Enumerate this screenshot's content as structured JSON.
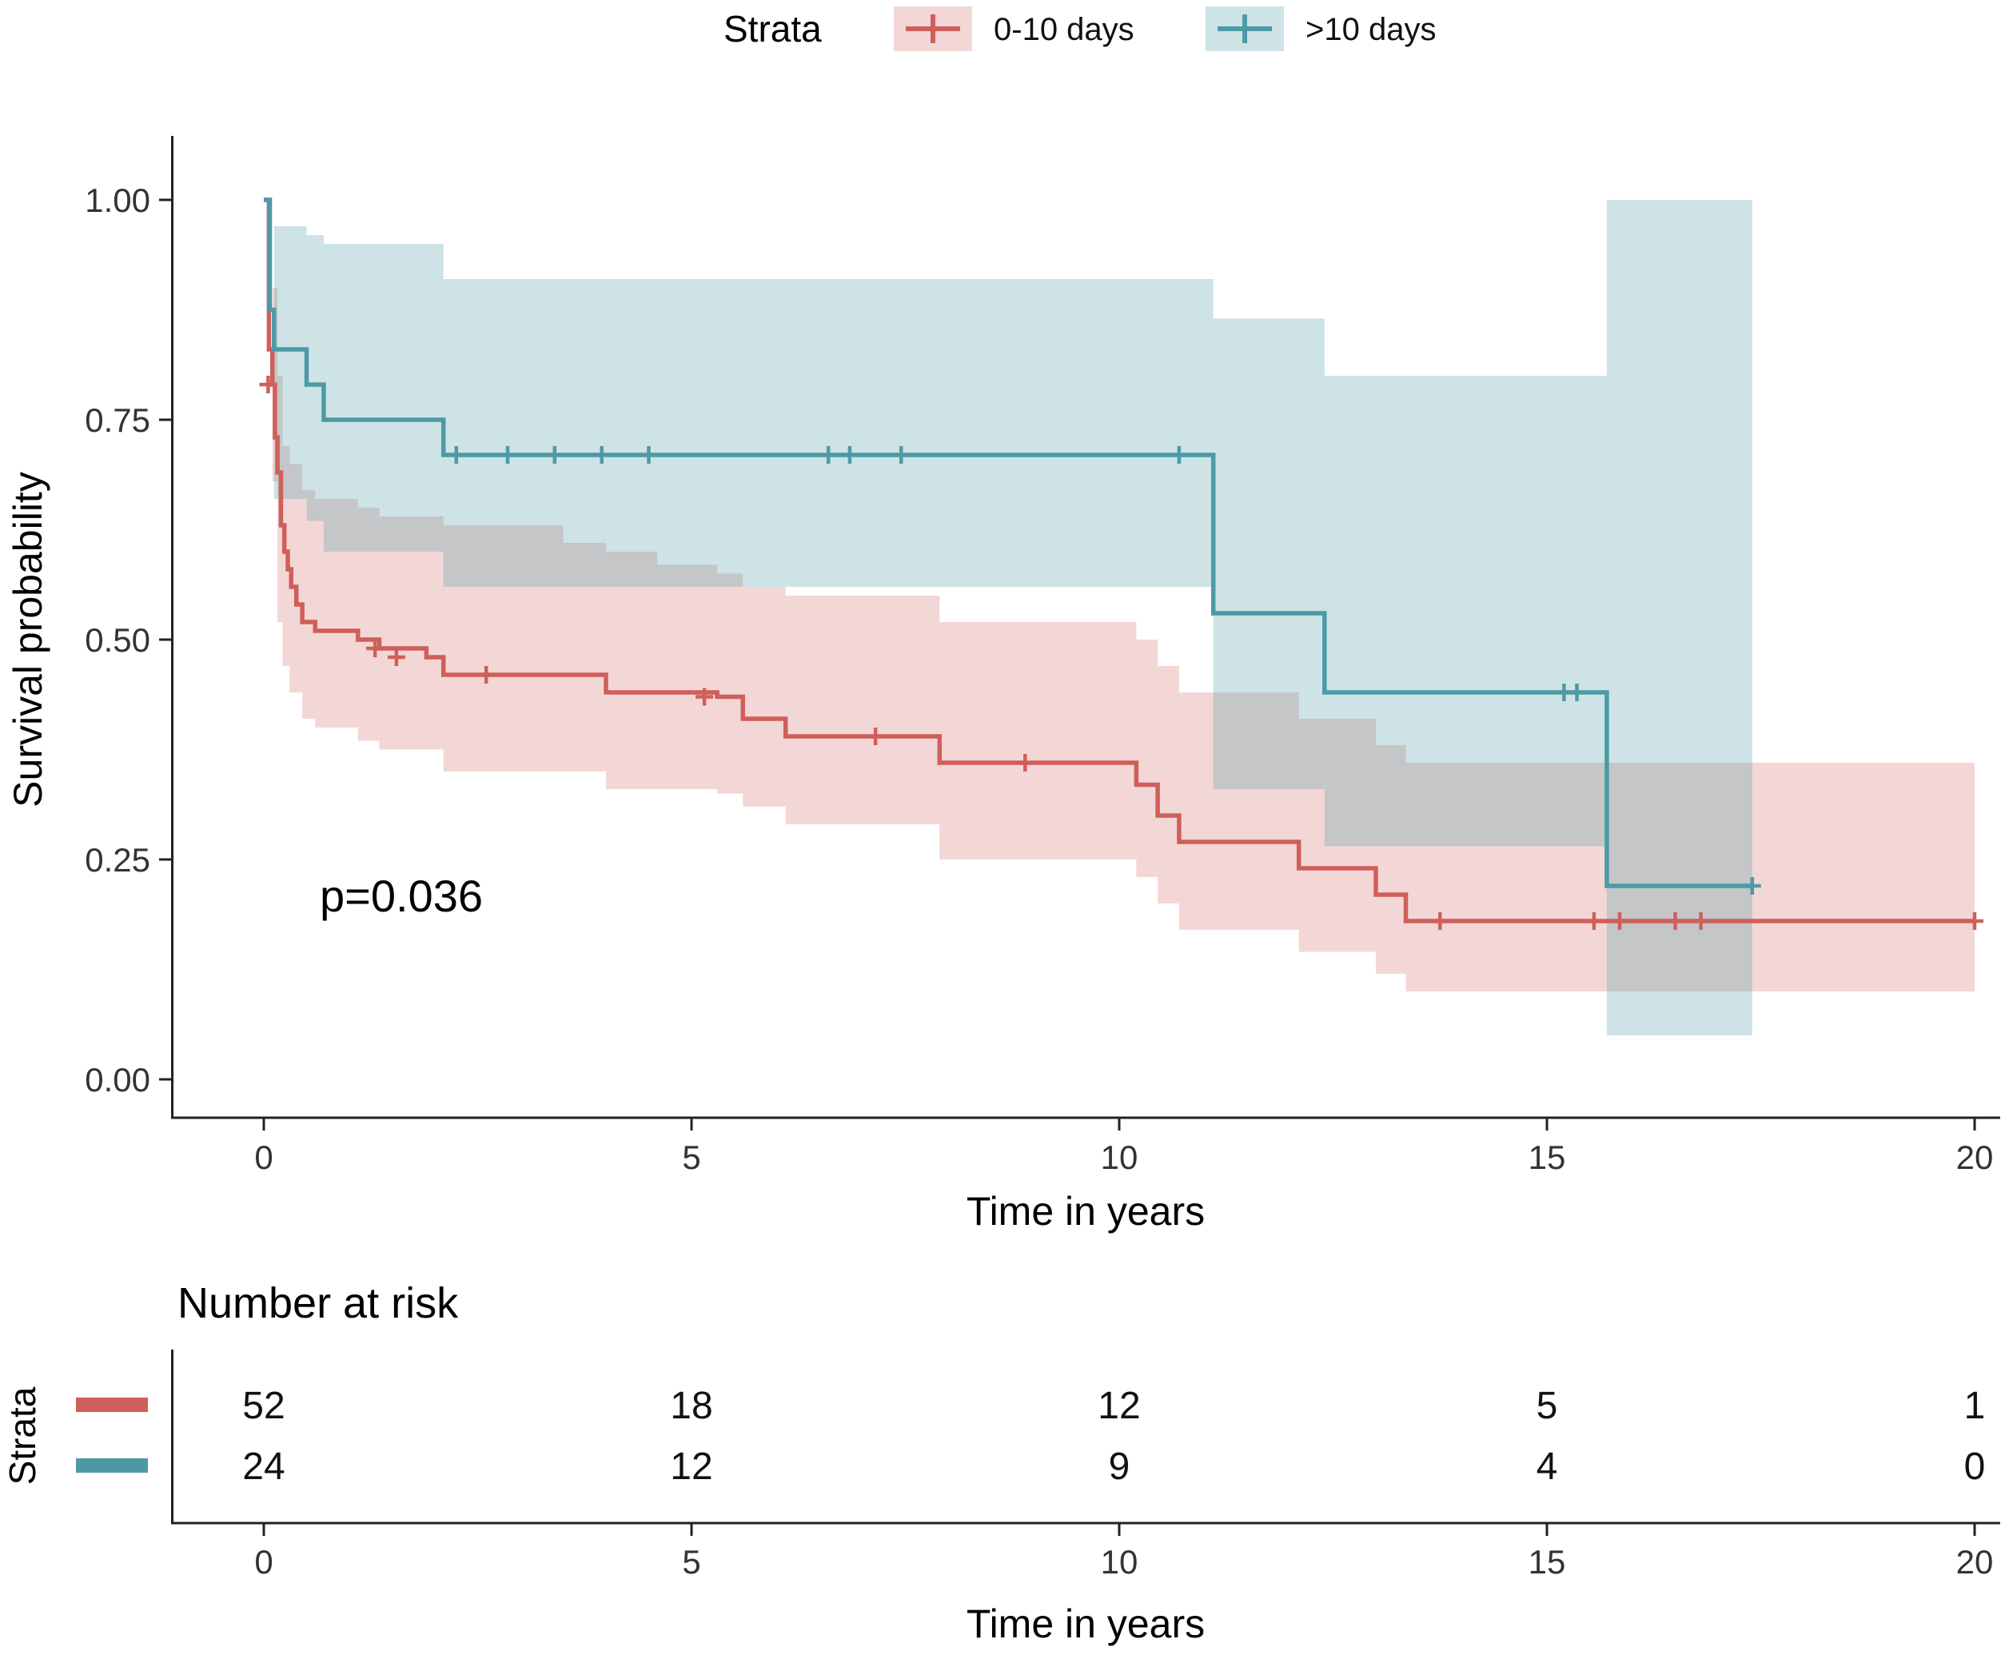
{
  "chart_data": {
    "type": "line",
    "subtype": "kaplan-meier-survival",
    "title": "",
    "xlabel": "Time in years",
    "ylabel": "Survival probability",
    "xlim": [
      0,
      20
    ],
    "ylim": [
      0,
      1
    ],
    "xticks": [
      0,
      5,
      10,
      15,
      20
    ],
    "yticks": [
      0,
      0.25,
      0.5,
      0.75,
      1
    ],
    "ytick_labels": [
      "0.00",
      "0.25",
      "0.50",
      "0.75",
      "1.00"
    ],
    "grid": false,
    "annotation": {
      "text": "p=0.036",
      "x": 0.7,
      "y": 0.2
    },
    "legend": {
      "title": "Strata",
      "position": "top"
    },
    "series": [
      {
        "name": "0-10 days",
        "color": "#cf5f5a",
        "band_color": "rgba(207,95,90,0.25)",
        "steps": [
          [
            0,
            1.0
          ],
          [
            0.06,
            0.83
          ],
          [
            0.1,
            0.79
          ],
          [
            0.13,
            0.73
          ],
          [
            0.16,
            0.69
          ],
          [
            0.2,
            0.63
          ],
          [
            0.24,
            0.6
          ],
          [
            0.28,
            0.58
          ],
          [
            0.32,
            0.56
          ],
          [
            0.38,
            0.54
          ],
          [
            0.45,
            0.52
          ],
          [
            0.6,
            0.51
          ],
          [
            1.1,
            0.5
          ],
          [
            1.35,
            0.49
          ],
          [
            1.9,
            0.48
          ],
          [
            2.1,
            0.46
          ],
          [
            4.0,
            0.44
          ],
          [
            5.3,
            0.435
          ],
          [
            5.6,
            0.41
          ],
          [
            6.1,
            0.39
          ],
          [
            7.9,
            0.36
          ],
          [
            10.2,
            0.335
          ],
          [
            10.45,
            0.3
          ],
          [
            10.7,
            0.27
          ],
          [
            12.1,
            0.24
          ],
          [
            13.0,
            0.21
          ],
          [
            13.35,
            0.18
          ],
          [
            20,
            0.18
          ]
        ],
        "censors": [
          [
            0.05,
            0.79
          ],
          [
            1.3,
            0.49
          ],
          [
            1.55,
            0.48
          ],
          [
            2.6,
            0.46
          ],
          [
            5.15,
            0.435
          ],
          [
            7.15,
            0.39
          ],
          [
            8.9,
            0.36
          ],
          [
            13.75,
            0.18
          ],
          [
            15.55,
            0.18
          ],
          [
            15.85,
            0.18
          ],
          [
            16.5,
            0.18
          ],
          [
            16.8,
            0.18
          ],
          [
            20,
            0.18
          ]
        ],
        "band": {
          "upper": [
            [
              0,
              1.0
            ],
            [
              0.1,
              0.9
            ],
            [
              0.16,
              0.8
            ],
            [
              0.22,
              0.72
            ],
            [
              0.3,
              0.7
            ],
            [
              0.45,
              0.67
            ],
            [
              0.6,
              0.66
            ],
            [
              1.1,
              0.65
            ],
            [
              1.35,
              0.64
            ],
            [
              2.1,
              0.63
            ],
            [
              3.5,
              0.61
            ],
            [
              4.0,
              0.6
            ],
            [
              4.6,
              0.585
            ],
            [
              5.3,
              0.575
            ],
            [
              5.6,
              0.56
            ],
            [
              6.1,
              0.55
            ],
            [
              7.9,
              0.52
            ],
            [
              10.2,
              0.5
            ],
            [
              10.45,
              0.47
            ],
            [
              10.7,
              0.44
            ],
            [
              12.1,
              0.41
            ],
            [
              13.0,
              0.38
            ],
            [
              13.35,
              0.36
            ],
            [
              20,
              0.36
            ]
          ],
          "lower": [
            [
              0,
              1.0
            ],
            [
              0.1,
              0.68
            ],
            [
              0.16,
              0.52
            ],
            [
              0.22,
              0.47
            ],
            [
              0.3,
              0.44
            ],
            [
              0.45,
              0.41
            ],
            [
              0.6,
              0.4
            ],
            [
              1.1,
              0.385
            ],
            [
              1.35,
              0.375
            ],
            [
              2.1,
              0.35
            ],
            [
              4.0,
              0.33
            ],
            [
              5.3,
              0.325
            ],
            [
              5.6,
              0.31
            ],
            [
              6.1,
              0.29
            ],
            [
              7.9,
              0.25
            ],
            [
              10.2,
              0.23
            ],
            [
              10.45,
              0.2
            ],
            [
              10.7,
              0.17
            ],
            [
              12.1,
              0.145
            ],
            [
              13.0,
              0.12
            ],
            [
              13.35,
              0.1
            ],
            [
              20,
              0.1
            ]
          ]
        }
      },
      {
        "name": ">10 days",
        "color": "#4d9aa6",
        "band_color": "rgba(77,154,166,0.28)",
        "steps": [
          [
            0,
            1.0
          ],
          [
            0.07,
            0.875
          ],
          [
            0.12,
            0.83
          ],
          [
            0.5,
            0.79
          ],
          [
            0.7,
            0.75
          ],
          [
            2.1,
            0.71
          ],
          [
            11.1,
            0.53
          ],
          [
            12.4,
            0.44
          ],
          [
            15.7,
            0.22
          ],
          [
            17.4,
            0.22
          ]
        ],
        "censors": [
          [
            2.25,
            0.71
          ],
          [
            2.85,
            0.71
          ],
          [
            3.4,
            0.71
          ],
          [
            3.95,
            0.71
          ],
          [
            4.5,
            0.71
          ],
          [
            6.6,
            0.71
          ],
          [
            6.85,
            0.71
          ],
          [
            7.45,
            0.71
          ],
          [
            10.7,
            0.71
          ],
          [
            15.2,
            0.44
          ],
          [
            15.35,
            0.44
          ],
          [
            17.4,
            0.22
          ]
        ],
        "band": {
          "upper": [
            [
              0,
              1.0
            ],
            [
              0.12,
              0.97
            ],
            [
              0.5,
              0.96
            ],
            [
              0.7,
              0.95
            ],
            [
              2.1,
              0.91
            ],
            [
              11.1,
              0.865
            ],
            [
              12.4,
              0.8
            ],
            [
              15.7,
              1.0
            ],
            [
              17.4,
              1.0
            ]
          ],
          "lower": [
            [
              0,
              1.0
            ],
            [
              0.12,
              0.66
            ],
            [
              0.5,
              0.635
            ],
            [
              0.7,
              0.6
            ],
            [
              2.1,
              0.56
            ],
            [
              11.1,
              0.33
            ],
            [
              12.4,
              0.265
            ],
            [
              15.7,
              0.05
            ],
            [
              17.4,
              0.05
            ]
          ]
        }
      }
    ],
    "risk_table": {
      "title": "Number at risk",
      "axis_label": "Strata",
      "xlabel": "Time in years",
      "times": [
        0,
        5,
        10,
        15,
        20
      ],
      "rows": [
        {
          "name": "0-10 days",
          "color": "#cf5f5a",
          "counts": [
            52,
            18,
            12,
            5,
            1
          ]
        },
        {
          "name": ">10 days",
          "color": "#4d9aa6",
          "counts": [
            24,
            12,
            9,
            4,
            0
          ]
        }
      ]
    }
  }
}
